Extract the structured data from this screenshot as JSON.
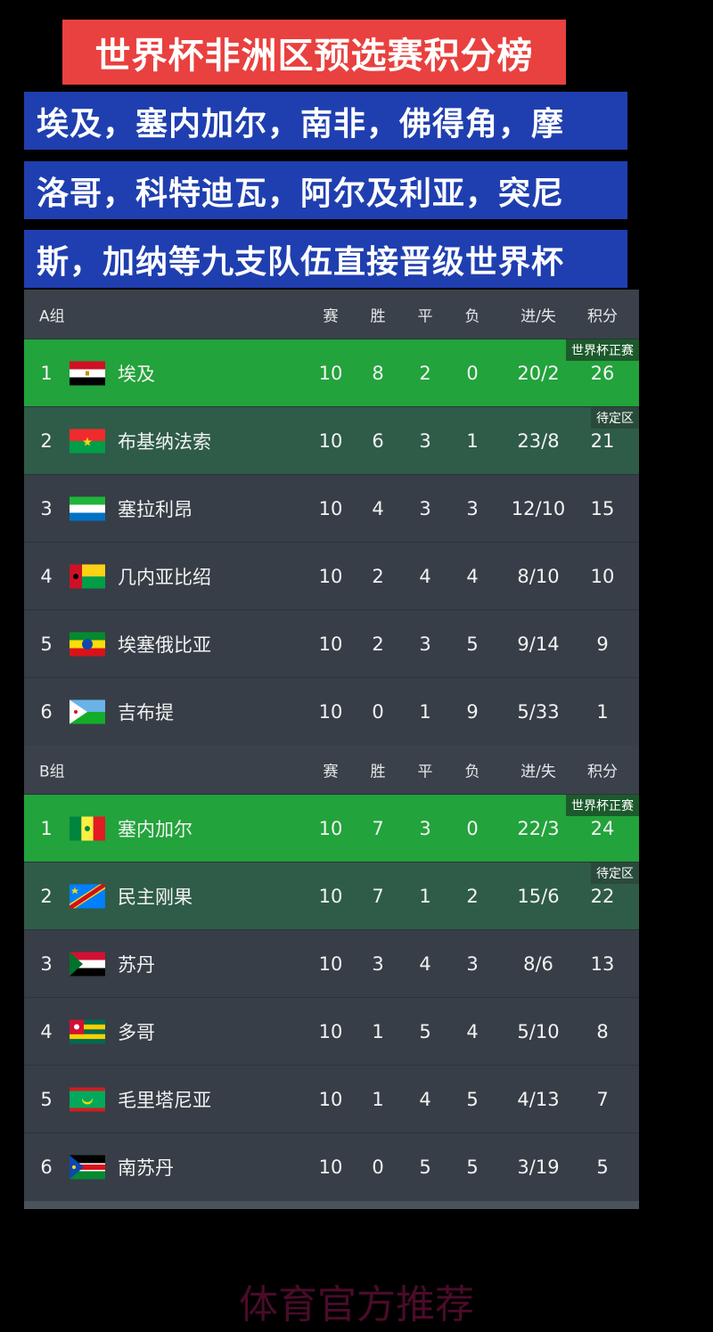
{
  "title": "世界杯非洲区预选赛积分榜",
  "banners": [
    "埃及，塞内加尔，南非，佛得角，摩",
    "洛哥，科特迪瓦，阿尔及利亚，突尼",
    "斯，加纳等九支队伍直接晋级世界杯"
  ],
  "columns": [
    "赛",
    "胜",
    "平",
    "负",
    "进/失",
    "积分"
  ],
  "badges": {
    "qualified": "世界杯正赛",
    "pending": "待定区"
  },
  "groups": [
    {
      "name": "A组",
      "rows": [
        {
          "rank": "1",
          "team": "埃及",
          "flag": "egypt",
          "p": "10",
          "w": "8",
          "d": "2",
          "l": "0",
          "gf": "20/2",
          "pts": "26",
          "status": "qualified"
        },
        {
          "rank": "2",
          "team": "布基纳法索",
          "flag": "burkina-faso",
          "p": "10",
          "w": "6",
          "d": "3",
          "l": "1",
          "gf": "23/8",
          "pts": "21",
          "status": "pending"
        },
        {
          "rank": "3",
          "team": "塞拉利昂",
          "flag": "sierra-leone",
          "p": "10",
          "w": "4",
          "d": "3",
          "l": "3",
          "gf": "12/10",
          "pts": "15"
        },
        {
          "rank": "4",
          "team": "几内亚比绍",
          "flag": "guinea-bissau",
          "p": "10",
          "w": "2",
          "d": "4",
          "l": "4",
          "gf": "8/10",
          "pts": "10"
        },
        {
          "rank": "5",
          "team": "埃塞俄比亚",
          "flag": "ethiopia",
          "p": "10",
          "w": "2",
          "d": "3",
          "l": "5",
          "gf": "9/14",
          "pts": "9"
        },
        {
          "rank": "6",
          "team": "吉布提",
          "flag": "djibouti",
          "p": "10",
          "w": "0",
          "d": "1",
          "l": "9",
          "gf": "5/33",
          "pts": "1"
        }
      ]
    },
    {
      "name": "B组",
      "rows": [
        {
          "rank": "1",
          "team": "塞内加尔",
          "flag": "senegal",
          "p": "10",
          "w": "7",
          "d": "3",
          "l": "0",
          "gf": "22/3",
          "pts": "24",
          "status": "qualified"
        },
        {
          "rank": "2",
          "team": "民主刚果",
          "flag": "dr-congo",
          "p": "10",
          "w": "7",
          "d": "1",
          "l": "2",
          "gf": "15/6",
          "pts": "22",
          "status": "pending"
        },
        {
          "rank": "3",
          "team": "苏丹",
          "flag": "sudan",
          "p": "10",
          "w": "3",
          "d": "4",
          "l": "3",
          "gf": "8/6",
          "pts": "13"
        },
        {
          "rank": "4",
          "team": "多哥",
          "flag": "togo",
          "p": "10",
          "w": "1",
          "d": "5",
          "l": "4",
          "gf": "5/10",
          "pts": "8"
        },
        {
          "rank": "5",
          "team": "毛里塔尼亚",
          "flag": "mauritania",
          "p": "10",
          "w": "1",
          "d": "4",
          "l": "5",
          "gf": "4/13",
          "pts": "7"
        },
        {
          "rank": "6",
          "team": "南苏丹",
          "flag": "south-sudan",
          "p": "10",
          "w": "0",
          "d": "5",
          "l": "5",
          "gf": "3/19",
          "pts": "5"
        }
      ]
    }
  ],
  "colors": {
    "qualified": "#22a33b",
    "pending": "#2e5c48",
    "row": "#373e47",
    "title_bg": "#e8413f",
    "banner_bg": "#1f3fb0"
  },
  "promo": "体育官方推荐"
}
